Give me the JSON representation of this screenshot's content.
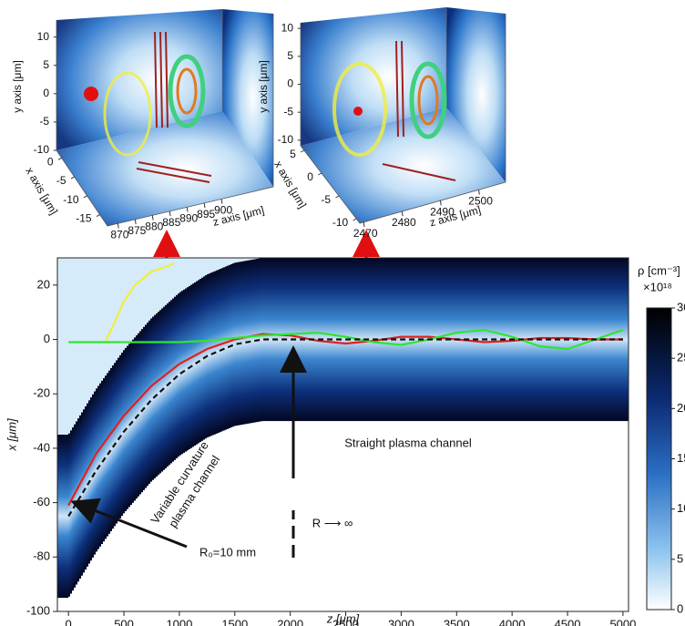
{
  "chart_data": [
    {
      "type": "channel-map",
      "xlabel": "z [μm]",
      "ylabel": "x [μm]",
      "xlim": [
        -100,
        5050
      ],
      "ylim": [
        -100,
        30
      ],
      "xticks": [
        0,
        500,
        1000,
        1500,
        2000,
        2500,
        3000,
        3500,
        4000,
        4500,
        5000
      ],
      "yticks": [
        -100,
        -80,
        -60,
        -40,
        -20,
        0,
        20
      ],
      "x": [
        0,
        250,
        500,
        750,
        1000,
        1250,
        1500,
        1750,
        2000,
        2250,
        2500,
        2750,
        3000,
        3250,
        3500,
        3750,
        4000,
        4250,
        4500,
        4750,
        5000
      ],
      "channel": {
        "center": [
          -65,
          -48.2,
          -33.9,
          -22.1,
          -12.8,
          -6.1,
          -1.8,
          0,
          0,
          0,
          0,
          0,
          0,
          0,
          0,
          0,
          0,
          0,
          0,
          0,
          0
        ],
        "half_width": 30
      },
      "series": [
        {
          "color": "#f2ee3a",
          "x": [
            330,
            400,
            500,
            600,
            750,
            900,
            950
          ],
          "values": [
            -1,
            5,
            14,
            20,
            25,
            27,
            28
          ]
        },
        {
          "color": "#e02020",
          "values": [
            -61,
            -42,
            -28,
            -17,
            -9,
            -3.5,
            0,
            2,
            1.5,
            -0.5,
            -1.5,
            -0.5,
            1,
            1,
            0,
            -1,
            -0.5,
            0.5,
            0.5,
            0,
            0
          ]
        },
        {
          "color": "#2ee62e",
          "values": [
            -1,
            -1,
            -1,
            -1,
            -1,
            -0.5,
            0.5,
            1.5,
            2,
            2.5,
            1,
            -1,
            -2,
            0,
            2.5,
            3.5,
            1,
            -2.5,
            -3.5,
            0,
            3.5
          ]
        },
        {
          "color": "#111111",
          "dashed": true,
          "values": [
            -65,
            -48.2,
            -33.9,
            -22.1,
            -12.8,
            -6.1,
            -1.8,
            0,
            0,
            0,
            0,
            0,
            0,
            0,
            0,
            0,
            0,
            0,
            0,
            0,
            0
          ]
        }
      ],
      "annotations": [
        "Variable curvature",
        "plasma channel",
        "Straight plasma channel",
        "R ⟶ ∞",
        "R₀=10 mm"
      ],
      "colorbar": {
        "label": "ρ [cm⁻³]",
        "scale": "×10¹⁸",
        "lim": [
          0,
          30
        ],
        "ticks": [
          0,
          5,
          10,
          15,
          20,
          25,
          30
        ]
      }
    },
    {
      "type": "volume",
      "xlabel": "x axis [μm]",
      "ylabel": "y axis [μm]",
      "zlabel": "z axis [μm]",
      "xlim": [
        -18,
        2
      ],
      "xticks": [
        -15,
        -10,
        -5,
        0
      ],
      "ylim": [
        -10,
        13
      ],
      "yticks": [
        -10,
        -5,
        0,
        5,
        10
      ],
      "zlim": [
        867,
        915
      ],
      "zticks": [
        870,
        875,
        880,
        885,
        890,
        895,
        900
      ]
    },
    {
      "type": "volume",
      "xlabel": "x axis [μm]",
      "ylabel": "y axis [μm]",
      "zlabel": "z axis [μm]",
      "xlim": [
        -11,
        6
      ],
      "xticks": [
        -10,
        -5,
        0,
        5
      ],
      "ylim": [
        -11,
        11
      ],
      "yticks": [
        -10,
        -5,
        0,
        5,
        10
      ],
      "zlim": [
        2469,
        2507
      ],
      "zticks": [
        2470,
        2480,
        2490,
        2500
      ]
    }
  ]
}
